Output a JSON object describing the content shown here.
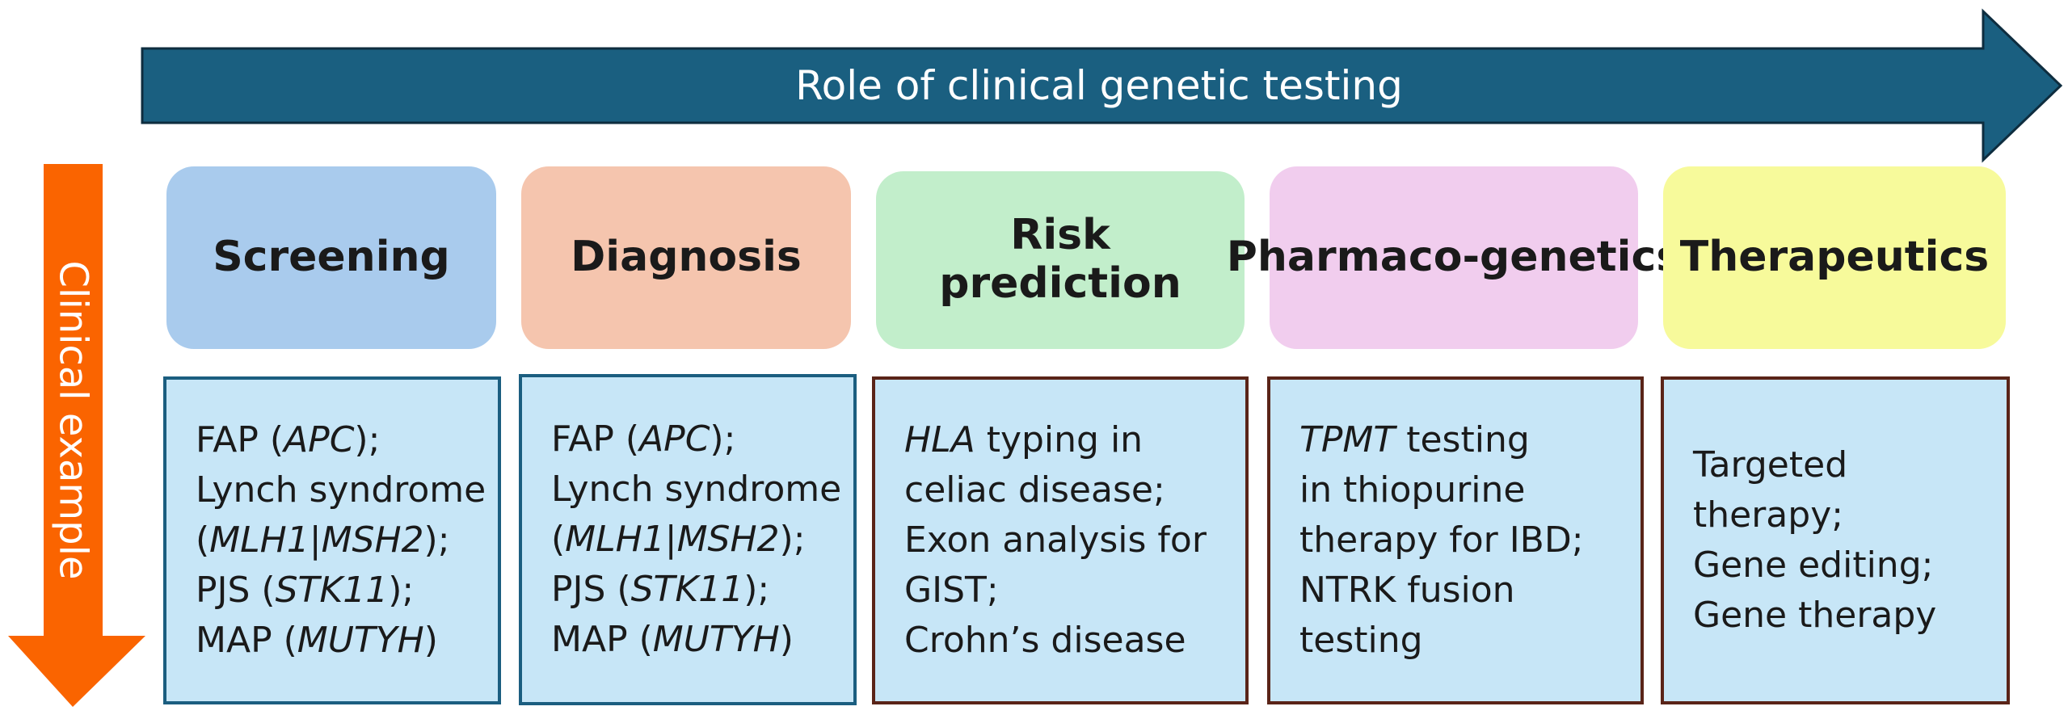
{
  "banner": {
    "label": "Role of clinical genetic testing",
    "color": "#1a5f80"
  },
  "side_arrow": {
    "label": "Clinical example",
    "color": "#fa6400"
  },
  "columns": [
    {
      "header": "Screening",
      "header_color": "#a9cbed",
      "border": "blue",
      "lines": [
        [
          {
            "t": "FAP ("
          },
          {
            "t": "APC",
            "i": true
          },
          {
            "t": ");"
          }
        ],
        [
          {
            "t": "Lynch syndrome"
          }
        ],
        [
          {
            "t": "("
          },
          {
            "t": "MLH1",
            "i": true
          },
          {
            "t": "|"
          },
          {
            "t": "MSH2",
            "i": true
          },
          {
            "t": ");"
          }
        ],
        [
          {
            "t": "PJS ("
          },
          {
            "t": "STK11",
            "i": true
          },
          {
            "t": ");"
          }
        ],
        [
          {
            "t": "MAP ("
          },
          {
            "t": "MUTYH",
            "i": true
          },
          {
            "t": ")"
          }
        ]
      ]
    },
    {
      "header": "Diagnosis",
      "header_color": "#f5c5ae",
      "border": "blue",
      "lines": [
        [
          {
            "t": "FAP ("
          },
          {
            "t": "APC",
            "i": true
          },
          {
            "t": ");"
          }
        ],
        [
          {
            "t": "Lynch syndrome"
          }
        ],
        [
          {
            "t": "("
          },
          {
            "t": "MLH1",
            "i": true
          },
          {
            "t": "|"
          },
          {
            "t": "MSH2",
            "i": true
          },
          {
            "t": ");"
          }
        ],
        [
          {
            "t": "PJS ("
          },
          {
            "t": "STK11",
            "i": true
          },
          {
            "t": ");"
          }
        ],
        [
          {
            "t": "MAP ("
          },
          {
            "t": "MUTYH",
            "i": true
          },
          {
            "t": ")"
          }
        ]
      ]
    },
    {
      "header": "Risk prediction",
      "header_color": "#c2eecb",
      "border": "brown",
      "lines": [
        [
          {
            "t": "HLA",
            "i": true
          },
          {
            "t": " typing in"
          }
        ],
        [
          {
            "t": "celiac disease;"
          }
        ],
        [
          {
            "t": "Exon analysis for"
          }
        ],
        [
          {
            "t": "GIST;"
          }
        ],
        [
          {
            "t": "Crohn’s disease"
          }
        ]
      ]
    },
    {
      "header": "Pharmaco-\ngenetics",
      "header_color": "#f1cdee",
      "border": "brown",
      "lines": [
        [
          {
            "t": "TPMT",
            "i": true
          },
          {
            "t": " testing"
          }
        ],
        [
          {
            "t": "in thiopurine"
          }
        ],
        [
          {
            "t": "therapy for IBD;"
          }
        ],
        [
          {
            "t": "NTRK fusion"
          }
        ],
        [
          {
            "t": "testing"
          }
        ]
      ]
    },
    {
      "header": "Therapeutics",
      "header_color": "#f7fa9b",
      "border": "brown",
      "lines": [
        [
          {
            "t": "Targeted"
          }
        ],
        [
          {
            "t": "therapy;"
          }
        ],
        [
          {
            "t": "Gene editing;"
          }
        ],
        [
          {
            "t": "Gene therapy"
          }
        ]
      ]
    }
  ]
}
